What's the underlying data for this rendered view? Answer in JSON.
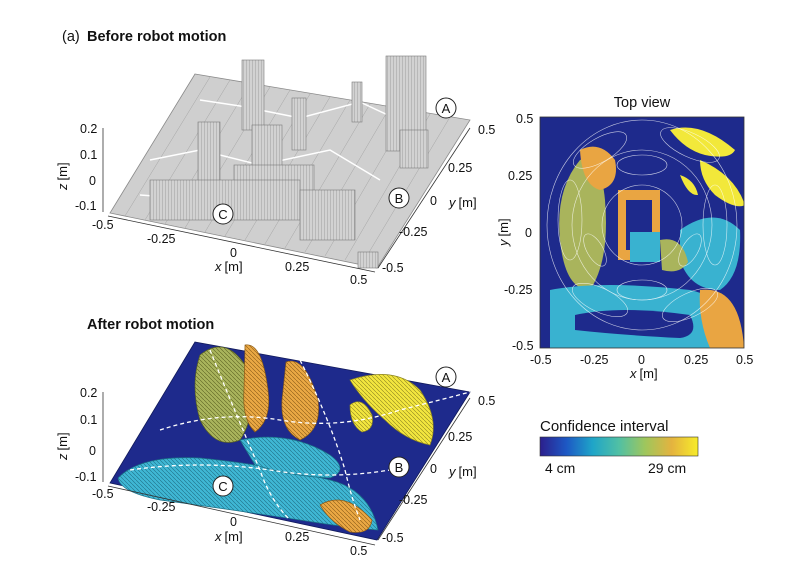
{
  "figure": {
    "panel_a_tag": "(a)",
    "before_title": "Before robot motion",
    "after_title": "After robot motion",
    "top_view_title": "Top view",
    "colorbar": {
      "title": "Confidence interval",
      "min_label": "4 cm",
      "max_label": "29 cm",
      "colors": [
        "#2c1f8c",
        "#1d58c4",
        "#1fa5c8",
        "#51c0a4",
        "#9fc65c",
        "#e4b33f",
        "#f7ec2a"
      ]
    },
    "colors": {
      "background_dark": "#1e2a8c",
      "surface_gray": "#c9c9c9",
      "cyan": "#39b2d0",
      "orange": "#e9a542",
      "olive": "#a8b55a",
      "yellow": "#f2e83a"
    },
    "markers": {
      "A": "A",
      "B": "B",
      "C": "C"
    },
    "axes3d": {
      "x_label": "x",
      "y_label": "y",
      "z_label": "z",
      "unit": "[m]",
      "x_ticks": [
        "-0.5",
        "-0.25",
        "0",
        "0.25",
        "0.5"
      ],
      "y_ticks": [
        "0.5",
        "0.25",
        "0",
        "-0.25",
        "-0.5"
      ],
      "z_ticks": [
        "0.2",
        "0.1",
        "0",
        "-0.1"
      ]
    },
    "topview_axes": {
      "x_label": "x",
      "y_label": "y",
      "unit": "[m]",
      "x_ticks": [
        "-0.5",
        "-0.25",
        "0",
        "0.25",
        "0.5"
      ],
      "y_ticks": [
        "0.5",
        "0.25",
        "0",
        "-0.25",
        "-0.5"
      ]
    }
  }
}
